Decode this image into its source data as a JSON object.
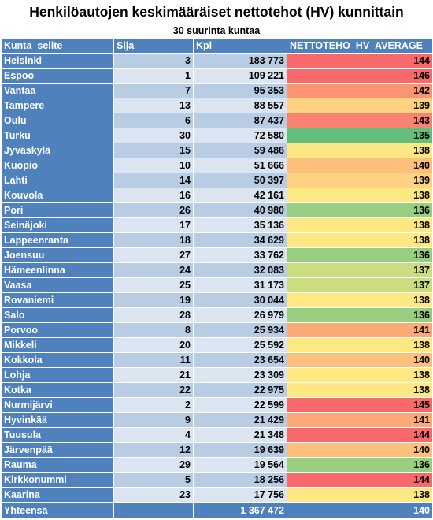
{
  "title": "Henkilöautojen keskimääräiset nettotehot (HV) kunnittain",
  "subtitle": "30 suurinta kuntaa",
  "headers": [
    "Kunta_selite",
    "Sija",
    "Kpl",
    "NETTOTEHO_HV_AVERAGE"
  ],
  "rows": [
    {
      "name": "Helsinki",
      "rank": "3",
      "count": "183 773",
      "hv": "144"
    },
    {
      "name": "Espoo",
      "rank": "1",
      "count": "109 221",
      "hv": "146"
    },
    {
      "name": "Vantaa",
      "rank": "7",
      "count": "95 353",
      "hv": "142"
    },
    {
      "name": "Tampere",
      "rank": "13",
      "count": "88 557",
      "hv": "139"
    },
    {
      "name": "Oulu",
      "rank": "6",
      "count": "87 437",
      "hv": "143"
    },
    {
      "name": "Turku",
      "rank": "30",
      "count": "72 580",
      "hv": "135"
    },
    {
      "name": "Jyväskylä",
      "rank": "15",
      "count": "59 486",
      "hv": "138"
    },
    {
      "name": "Kuopio",
      "rank": "10",
      "count": "51 666",
      "hv": "140"
    },
    {
      "name": "Lahti",
      "rank": "14",
      "count": "50 397",
      "hv": "139"
    },
    {
      "name": "Kouvola",
      "rank": "16",
      "count": "42 161",
      "hv": "138"
    },
    {
      "name": "Pori",
      "rank": "26",
      "count": "40 980",
      "hv": "136"
    },
    {
      "name": "Seinäjoki",
      "rank": "17",
      "count": "35 136",
      "hv": "138"
    },
    {
      "name": "Lappeenranta",
      "rank": "18",
      "count": "34 629",
      "hv": "138"
    },
    {
      "name": "Joensuu",
      "rank": "27",
      "count": "33 762",
      "hv": "136"
    },
    {
      "name": "Hämeenlinna",
      "rank": "24",
      "count": "32 083",
      "hv": "137"
    },
    {
      "name": "Vaasa",
      "rank": "25",
      "count": "31 173",
      "hv": "137"
    },
    {
      "name": "Rovaniemi",
      "rank": "19",
      "count": "30 044",
      "hv": "138"
    },
    {
      "name": "Salo",
      "rank": "28",
      "count": "26 979",
      "hv": "136"
    },
    {
      "name": "Porvoo",
      "rank": "8",
      "count": "25 934",
      "hv": "141"
    },
    {
      "name": "Mikkeli",
      "rank": "20",
      "count": "25 592",
      "hv": "138"
    },
    {
      "name": "Kokkola",
      "rank": "11",
      "count": "23 654",
      "hv": "140"
    },
    {
      "name": "Lohja",
      "rank": "21",
      "count": "23 309",
      "hv": "138"
    },
    {
      "name": "Kotka",
      "rank": "22",
      "count": "22 975",
      "hv": "138"
    },
    {
      "name": "Nurmijärvi",
      "rank": "2",
      "count": "22 599",
      "hv": "145"
    },
    {
      "name": "Hyvinkää",
      "rank": "9",
      "count": "21 429",
      "hv": "141"
    },
    {
      "name": "Tuusula",
      "rank": "4",
      "count": "21 348",
      "hv": "144"
    },
    {
      "name": "Järvenpää",
      "rank": "12",
      "count": "19 639",
      "hv": "140"
    },
    {
      "name": "Rauma",
      "rank": "29",
      "count": "19 564",
      "hv": "136"
    },
    {
      "name": "Kirkkonummi",
      "rank": "5",
      "count": "18 256",
      "hv": "144"
    },
    {
      "name": "Kaarina",
      "rank": "23",
      "count": "17 756",
      "hv": "138"
    }
  ],
  "total": {
    "label": "Yhteensä",
    "count": "1 367 472",
    "hv": "140"
  },
  "colors": {
    "header_blue": "#4f81bd",
    "band_dark": "#b8cce4",
    "band_light": "#dbe5f1",
    "heat": {
      "135": "#63be7b",
      "136": "#98ce7f",
      "137": "#cbdc81",
      "138": "#fee883",
      "139": "#fed280",
      "140": "#fdbf7c",
      "141": "#fba977",
      "142": "#fa9473",
      "143": "#f98370",
      "144": "#f8696b",
      "145": "#f8696b",
      "146": "#f8696b"
    }
  }
}
